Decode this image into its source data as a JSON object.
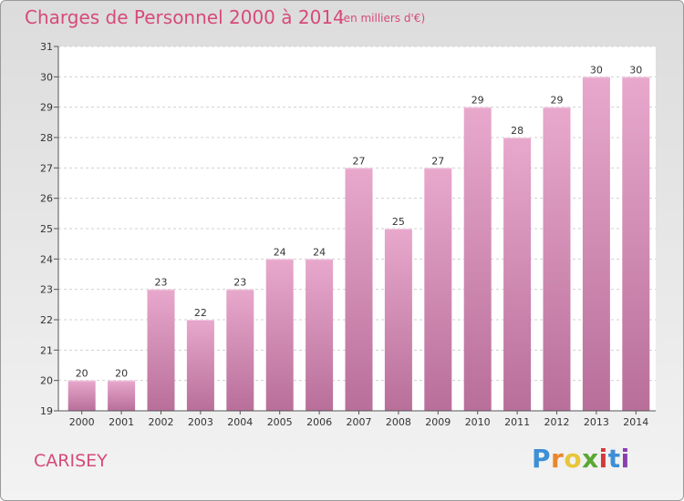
{
  "title": "Charges de Personnel 2000 à 2014",
  "subtitle": "(en milliers d'€)",
  "commune": "CARISEY",
  "logo": [
    "P",
    "r",
    "o",
    "x",
    "i",
    "t",
    "i"
  ],
  "colors": {
    "title": "#d64a7a",
    "bar_top": "#e8a8cc",
    "bar_bottom": "#b86f9a",
    "logo": [
      "#3d8fd6",
      "#e8872c",
      "#e8c63a",
      "#5aa832",
      "#d23a3a",
      "#3d8fd6",
      "#8a3fb0"
    ]
  },
  "chart_data": {
    "type": "bar",
    "title": "Charges de Personnel 2000 à 2014",
    "subtitle": "(en milliers d'€)",
    "xlabel": "",
    "ylabel": "",
    "categories": [
      "2000",
      "2001",
      "2002",
      "2003",
      "2004",
      "2005",
      "2006",
      "2007",
      "2008",
      "2009",
      "2010",
      "2011",
      "2012",
      "2013",
      "2014"
    ],
    "values": [
      20,
      20,
      23,
      22,
      23,
      24,
      24,
      27,
      25,
      27,
      29,
      28,
      29,
      30,
      30
    ],
    "ylim": [
      19,
      31
    ],
    "yticks": [
      19,
      20,
      21,
      22,
      23,
      24,
      25,
      26,
      27,
      28,
      29,
      30,
      31
    ],
    "grid": true
  }
}
